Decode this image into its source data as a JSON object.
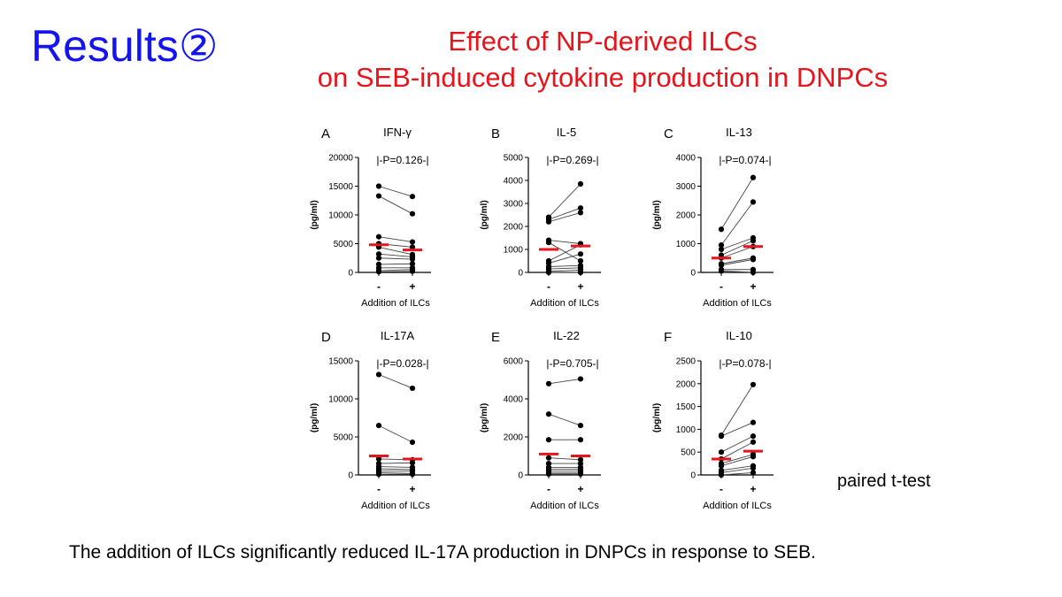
{
  "slide": {
    "title": "Results②",
    "subtitle_line1": "Effect of NP-derived ILCs",
    "subtitle_line2": "on SEB-induced cytokine production in DNPCs",
    "test_note": "paired t-test",
    "conclusion": "The addition of ILCs significantly reduced IL-17A production in DNPCs in response to SEB."
  },
  "colors": {
    "title": "#1414f0",
    "subtitle": "#e8141b",
    "mean_line": "#e8141b",
    "points": "#000000",
    "pair_lines": "#444444"
  },
  "chart_data": [
    {
      "panel": "A",
      "type": "scatter",
      "title": "IFN-γ",
      "annotation": "|-P=0.126-|",
      "ylabel": "(pg/ml)",
      "xlabel": "Addition of ILCs",
      "categories": [
        "-",
        "+"
      ],
      "ylim": [
        0,
        20000
      ],
      "yticks": [
        0,
        5000,
        10000,
        15000,
        20000
      ],
      "pairs": [
        [
          15000,
          13200
        ],
        [
          13300,
          10200
        ],
        [
          6200,
          5300
        ],
        [
          5000,
          4400
        ],
        [
          4400,
          3100
        ],
        [
          3200,
          2700
        ],
        [
          2500,
          2300
        ],
        [
          1400,
          1500
        ],
        [
          800,
          800
        ],
        [
          300,
          500
        ],
        [
          100,
          200
        ]
      ],
      "means": [
        4800,
        3900
      ]
    },
    {
      "panel": "B",
      "type": "scatter",
      "title": "IL-5",
      "annotation": "|-P=0.269-|",
      "ylabel": "(pg/ml)",
      "xlabel": "Addition of ILCs",
      "categories": [
        "-",
        "+"
      ],
      "ylim": [
        0,
        5000
      ],
      "yticks": [
        0,
        1000,
        2000,
        3000,
        4000,
        5000
      ],
      "pairs": [
        [
          2400,
          3850
        ],
        [
          2300,
          2800
        ],
        [
          2200,
          2600
        ],
        [
          1400,
          1250
        ],
        [
          1300,
          500
        ],
        [
          500,
          1200
        ],
        [
          400,
          800
        ],
        [
          250,
          300
        ],
        [
          150,
          200
        ],
        [
          50,
          100
        ],
        [
          0,
          0
        ]
      ],
      "means": [
        1000,
        1150
      ]
    },
    {
      "panel": "C",
      "type": "scatter",
      "title": "IL-13",
      "annotation": "|-P=0.074-|",
      "ylabel": "(pg/ml)",
      "xlabel": "Addition of ILCs",
      "categories": [
        "-",
        "+"
      ],
      "ylim": [
        0,
        4000
      ],
      "yticks": [
        0,
        1000,
        2000,
        3000,
        4000
      ],
      "pairs": [
        [
          1500,
          3300
        ],
        [
          950,
          2450
        ],
        [
          800,
          1200
        ],
        [
          600,
          1100
        ],
        [
          500,
          900
        ],
        [
          300,
          500
        ],
        [
          250,
          450
        ],
        [
          100,
          100
        ],
        [
          50,
          0
        ]
      ],
      "means": [
        500,
        900
      ]
    },
    {
      "panel": "D",
      "type": "scatter",
      "title": "IL-17A",
      "annotation": "|-P=0.028-|",
      "ylabel": "(pg/ml)",
      "xlabel": "Addition of ILCs",
      "categories": [
        "-",
        "+"
      ],
      "ylim": [
        0,
        15000
      ],
      "yticks": [
        0,
        5000,
        10000,
        15000
      ],
      "pairs": [
        [
          13200,
          11400
        ],
        [
          6500,
          4300
        ],
        [
          2100,
          2000
        ],
        [
          1500,
          1600
        ],
        [
          1100,
          1000
        ],
        [
          800,
          700
        ],
        [
          500,
          500
        ],
        [
          300,
          200
        ],
        [
          100,
          100
        ]
      ],
      "means": [
        2500,
        2100
      ]
    },
    {
      "panel": "E",
      "type": "scatter",
      "title": "IL-22",
      "annotation": "|-P=0.705-|",
      "ylabel": "(pg/ml)",
      "xlabel": "Addition of ILCs",
      "categories": [
        "-",
        "+"
      ],
      "ylim": [
        0,
        6000
      ],
      "yticks": [
        0,
        2000,
        4000,
        6000
      ],
      "pairs": [
        [
          4800,
          5050
        ],
        [
          3200,
          2600
        ],
        [
          1850,
          1850
        ],
        [
          900,
          800
        ],
        [
          600,
          600
        ],
        [
          400,
          400
        ],
        [
          300,
          300
        ],
        [
          200,
          200
        ],
        [
          100,
          100
        ],
        [
          50,
          50
        ]
      ],
      "means": [
        1100,
        1000
      ]
    },
    {
      "panel": "F",
      "type": "scatter",
      "title": "IL-10",
      "annotation": "|-P=0.078-|",
      "ylabel": "(pg/ml)",
      "xlabel": "Addition of ILCs",
      "categories": [
        "-",
        "+"
      ],
      "ylim": [
        0,
        2500
      ],
      "yticks": [
        0,
        500,
        1000,
        1500,
        2000,
        2500
      ],
      "pairs": [
        [
          870,
          1980
        ],
        [
          850,
          1150
        ],
        [
          500,
          850
        ],
        [
          350,
          720
        ],
        [
          250,
          450
        ],
        [
          200,
          400
        ],
        [
          100,
          200
        ],
        [
          50,
          150
        ],
        [
          0,
          50
        ]
      ],
      "means": [
        350,
        520
      ]
    }
  ]
}
